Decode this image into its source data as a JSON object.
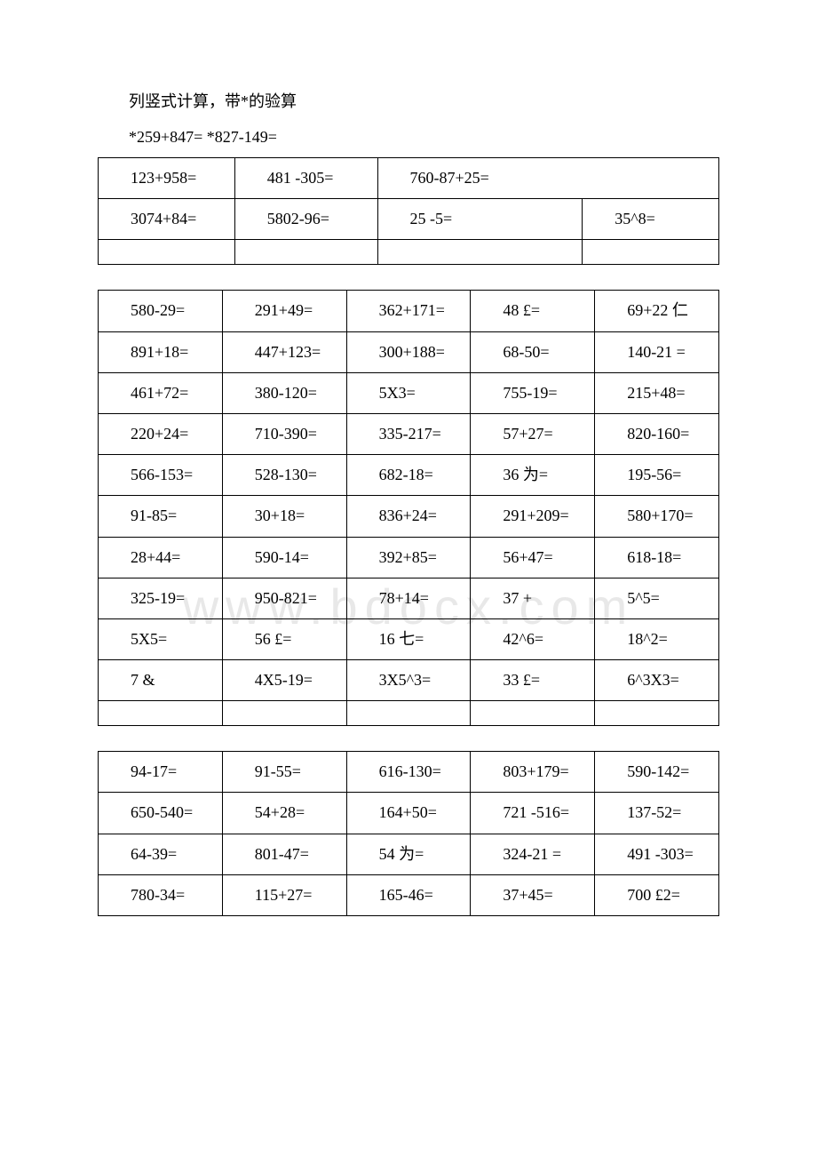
{
  "heading": "列竖式计算，带*的验算",
  "subheading": "*259+847= *827-149=",
  "watermark": "www.bdocx.com",
  "table1": {
    "rows": [
      [
        "123+958=",
        "481 -305=",
        "760-87+25=",
        ""
      ],
      [
        "3074+84=",
        "5802-96=",
        "25 -5=",
        "35^8="
      ],
      [
        "",
        "",
        "",
        ""
      ]
    ]
  },
  "table2": {
    "rows": [
      [
        "580-29=",
        "291+49=",
        "362+171=",
        "48 £=",
        "69+22 仁"
      ],
      [
        "891+18=",
        "447+123=",
        "300+188=",
        "68-50=",
        "140-21 ="
      ],
      [
        "461+72=",
        "380-120=",
        "5X3=",
        "755-19=",
        "215+48="
      ],
      [
        "220+24=",
        "710-390=",
        "335-217=",
        "57+27=",
        "820-160="
      ],
      [
        "566-153=",
        "528-130=",
        "682-18=",
        "36 为=",
        "195-56="
      ],
      [
        "91-85=",
        "30+18=",
        "836+24=",
        "291+209=",
        "580+170="
      ],
      [
        "28+44=",
        "590-14=",
        "392+85=",
        "56+47=",
        "618-18="
      ],
      [
        "325-19=",
        "950-821=",
        "78+14=",
        "37 +",
        "5^5="
      ],
      [
        "5X5=",
        "56 £=",
        "16 七=",
        "42^6=",
        "18^2="
      ],
      [
        "7 &",
        "4X5-19=",
        "3X5^3=",
        "33 £=",
        "6^3X3="
      ],
      [
        "",
        "",
        "",
        "",
        ""
      ]
    ]
  },
  "table3": {
    "rows": [
      [
        "94-17=",
        "91-55=",
        "616-130=",
        "803+179=",
        "590-142="
      ],
      [
        "650-540=",
        "54+28=",
        "164+50=",
        "721 -516=",
        "137-52="
      ],
      [
        "64-39=",
        "801-47=",
        "54 为=",
        "324-21 =",
        "491 -303="
      ],
      [
        "780-34=",
        "115+27=",
        "165-46=",
        "37+45=",
        "700 £2="
      ]
    ]
  }
}
